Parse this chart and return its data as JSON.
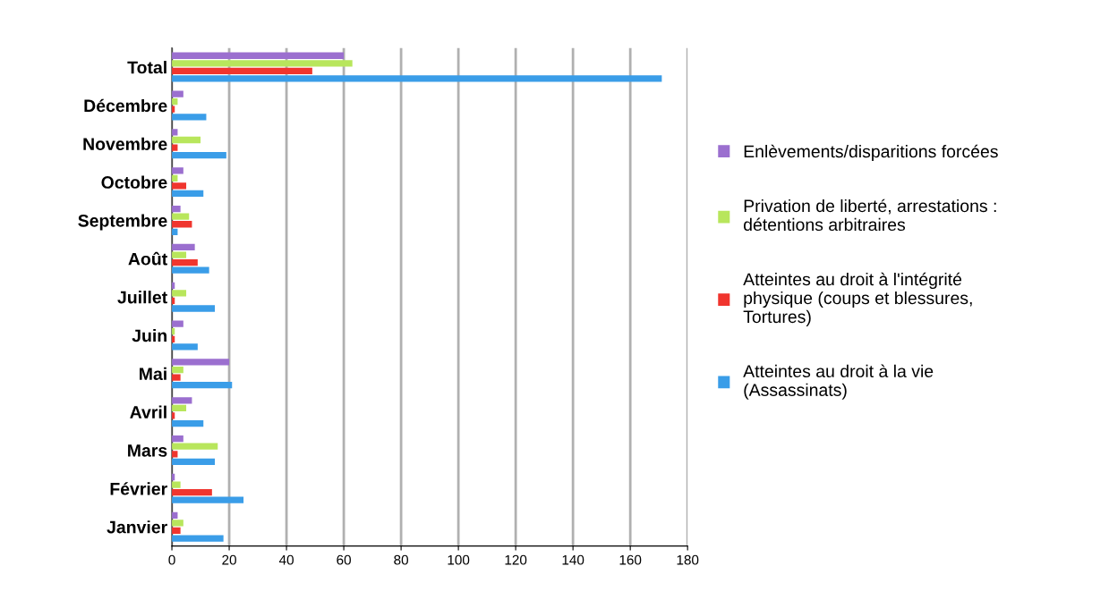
{
  "chart_data": {
    "type": "bar",
    "orientation": "horizontal",
    "categories": [
      "Total",
      "Décembre",
      "Novembre",
      "Octobre",
      "Septembre",
      "Août",
      "Juillet",
      "Juin",
      "Mai",
      "Avril",
      "Mars",
      "Février",
      "Janvier"
    ],
    "series": [
      {
        "name": "Enlèvements/disparitions forcées",
        "color": "#9b6fcf",
        "values": [
          60,
          4,
          2,
          4,
          3,
          8,
          1,
          4,
          20,
          7,
          4,
          1,
          2
        ]
      },
      {
        "name": "Privation de liberté, arrestations :\ndétentions arbitraires",
        "color": "#b8e65c",
        "values": [
          63,
          2,
          10,
          2,
          6,
          5,
          5,
          1,
          4,
          5,
          16,
          3,
          4
        ]
      },
      {
        "name": "Atteintes au droit à l'intégrité\nphysique (coups et blessures,\nTortures)",
        "color": "#f0352e",
        "values": [
          49,
          1,
          2,
          5,
          7,
          9,
          1,
          1,
          3,
          1,
          2,
          14,
          3
        ]
      },
      {
        "name": "Atteintes au droit à la vie\n(Assassinats)",
        "color": "#3a9de8",
        "values": [
          171,
          12,
          19,
          11,
          2,
          13,
          15,
          9,
          21,
          11,
          15,
          25,
          18
        ]
      }
    ],
    "xlim": [
      0,
      180
    ],
    "xticks": [
      0,
      20,
      40,
      60,
      80,
      100,
      120,
      140,
      160,
      180
    ],
    "grid": "x",
    "legend": "right"
  }
}
